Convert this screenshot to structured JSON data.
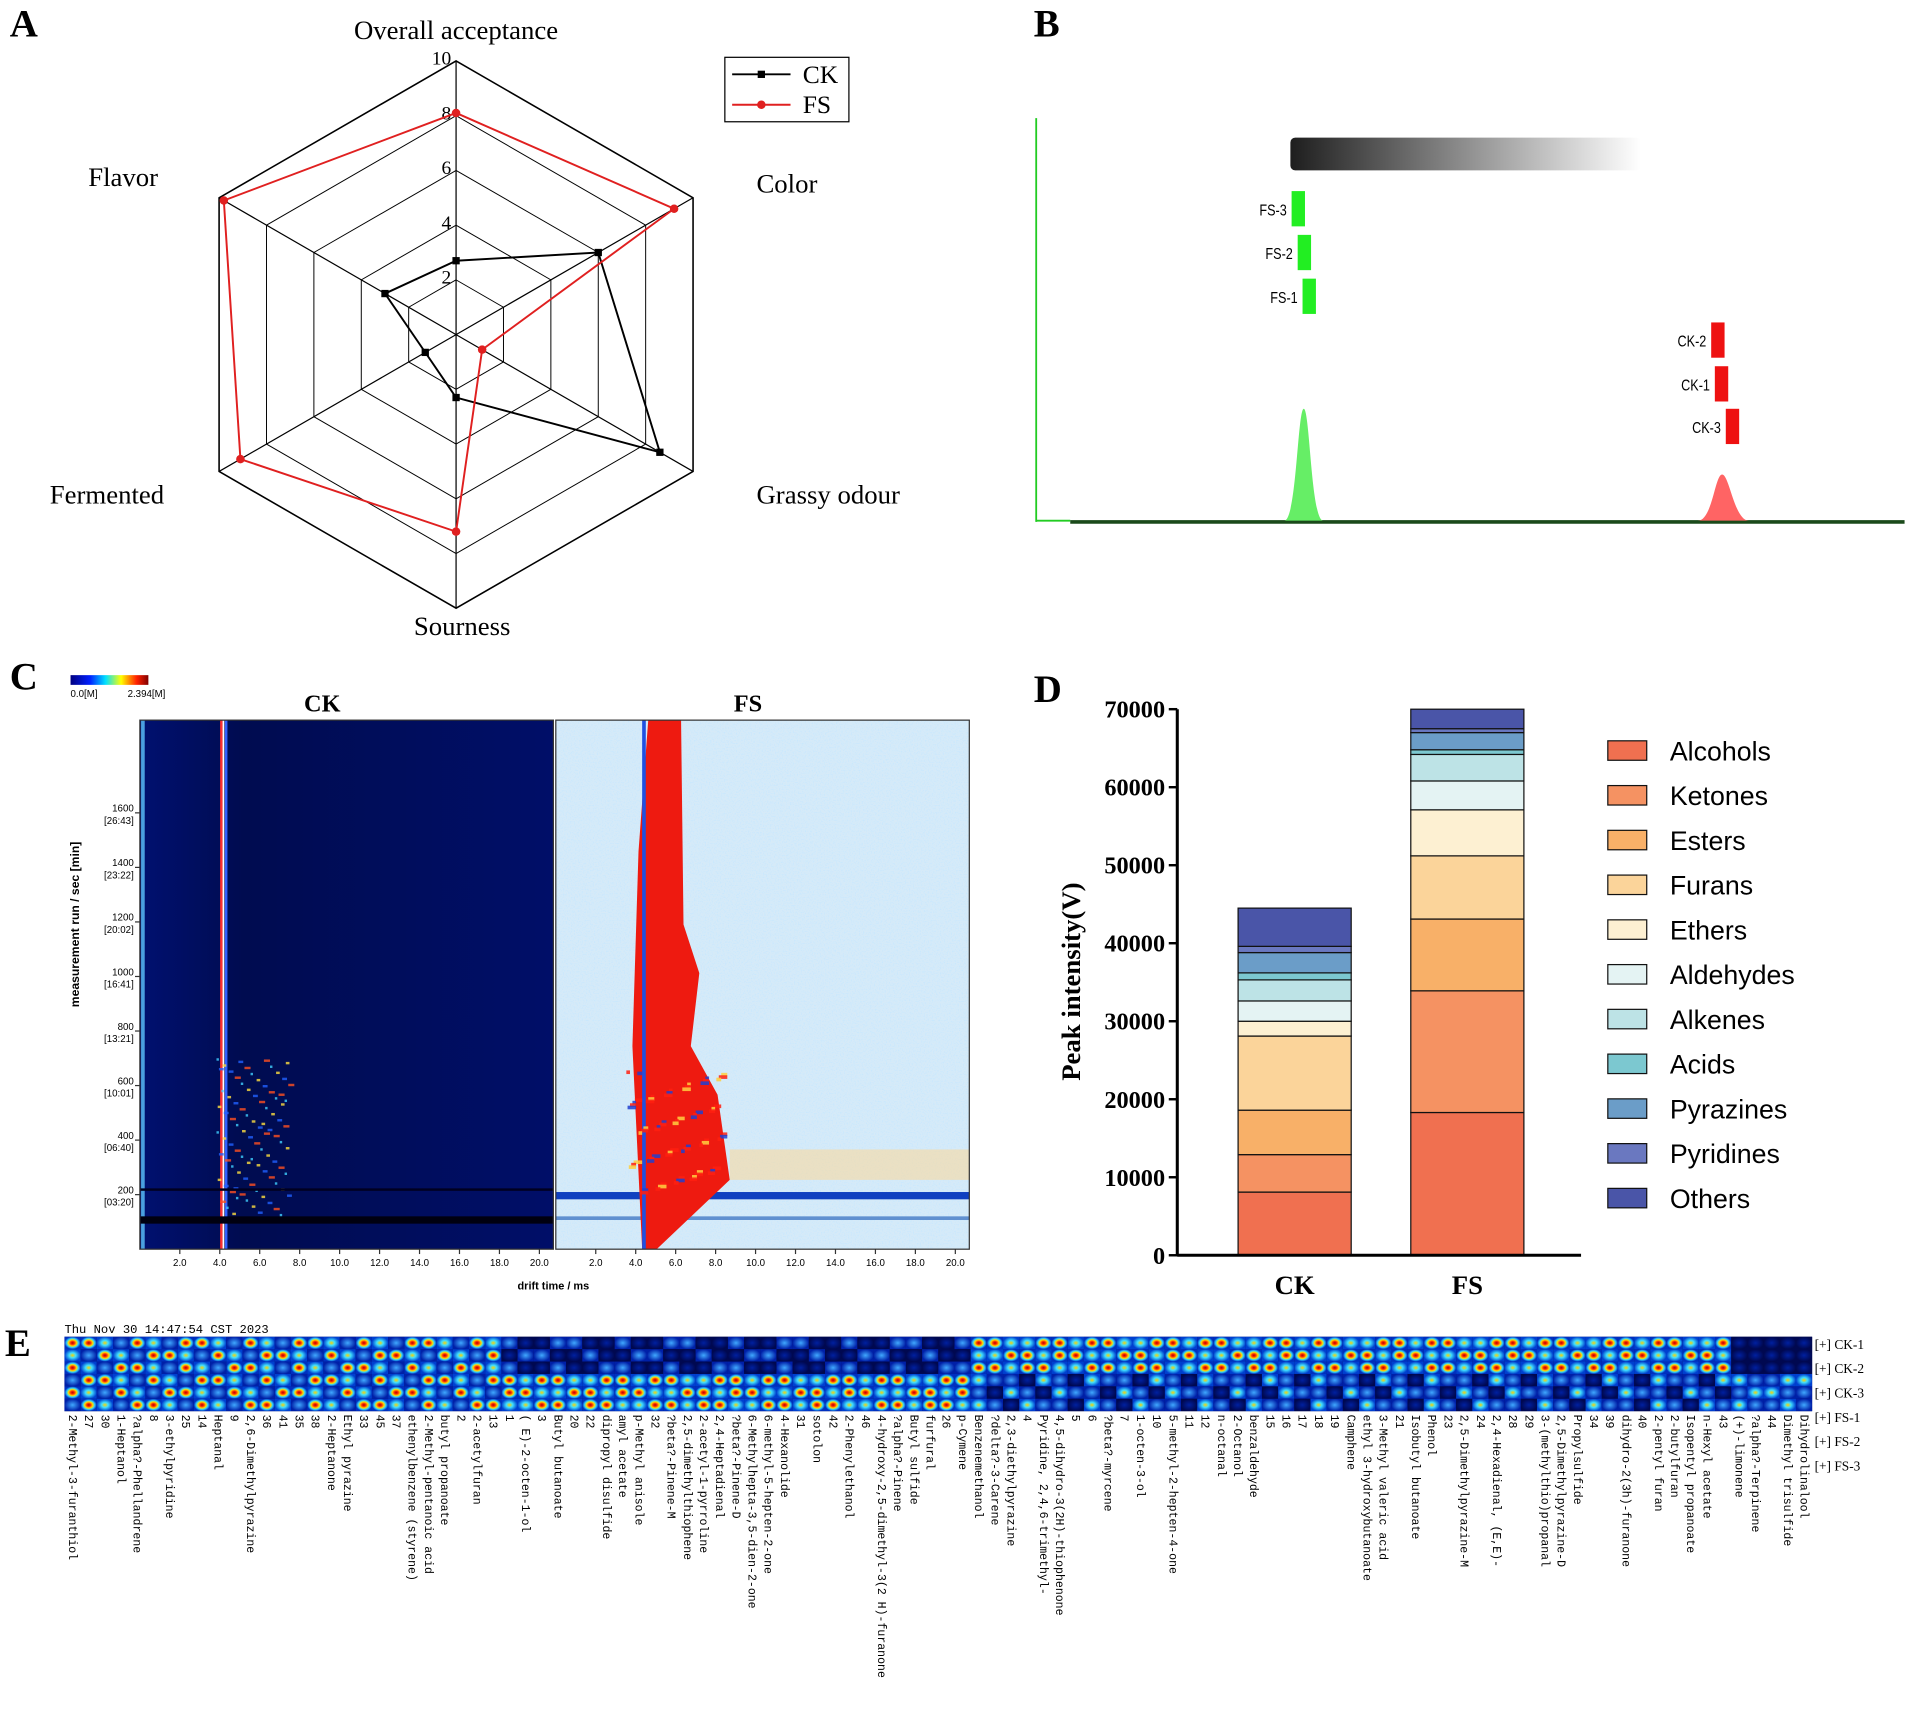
{
  "chart_data": [
    {
      "panel": "A",
      "type": "radar",
      "axes": [
        "Overall acceptance",
        "Color",
        "Grassy odour",
        "Sourness",
        "Fermented",
        "Flavor"
      ],
      "rlim": [
        0,
        10
      ],
      "rticks": [
        2,
        4,
        6,
        8,
        10
      ],
      "series": [
        {
          "name": "CK",
          "color": "#000000",
          "values": [
            2.7,
            6.0,
            8.6,
            2.3,
            1.3,
            3.0
          ]
        },
        {
          "name": "FS",
          "color": "#e02020",
          "values": [
            8.1,
            9.2,
            1.1,
            7.2,
            9.1,
            9.8
          ]
        }
      ]
    },
    {
      "panel": "B",
      "type": "gallery",
      "samples": [
        {
          "name": "FS-3",
          "color": "#22ee22"
        },
        {
          "name": "FS-2",
          "color": "#22ee22"
        },
        {
          "name": "FS-1",
          "color": "#22ee22"
        },
        {
          "name": "CK-2",
          "color": "#ee1111"
        },
        {
          "name": "CK-1",
          "color": "#ee1111"
        },
        {
          "name": "CK-3",
          "color": "#ee1111"
        }
      ]
    },
    {
      "panel": "C",
      "type": "heatmap",
      "titles": [
        "CK",
        "FS"
      ],
      "xlabel": "drift time / ms",
      "ylabel": "measurement run / sec [min]",
      "xlim": [
        0,
        20.7
      ],
      "xticks": [
        {
          "value": 2,
          "label": "2.0"
        },
        {
          "value": 4,
          "label": "4.0"
        },
        {
          "value": 6,
          "label": "6.0"
        },
        {
          "value": 8,
          "label": "8.0"
        },
        {
          "value": 10,
          "label": "10.0"
        },
        {
          "value": 12,
          "label": "12.0"
        },
        {
          "value": 14,
          "label": "14.0"
        },
        {
          "value": 16,
          "label": "16.0"
        },
        {
          "value": 18,
          "label": "18.0"
        },
        {
          "value": 20,
          "label": "20.0"
        }
      ],
      "ylim": [
        0,
        1940
      ],
      "yticks": [
        200,
        400,
        600,
        800,
        1000,
        1200,
        1400,
        1600
      ],
      "ytick_times": [
        "[03:20]",
        "[06:40]",
        "[10:01]",
        "[13:21]",
        "[16:41]",
        "[20:02]",
        "[23:22]",
        "[26:43]"
      ],
      "colorbar_labels": [
        "0.0[M]",
        "2.394[M]"
      ]
    },
    {
      "panel": "D",
      "type": "stacked_bar",
      "categories": [
        "CK",
        "FS"
      ],
      "ylabel": "Peak intensity(V)",
      "ylim": [
        0,
        70000
      ],
      "yticks": [
        0,
        10000,
        20000,
        30000,
        40000,
        50000,
        60000,
        70000
      ],
      "legend": "right",
      "series": [
        {
          "name": "Alcohols",
          "color": "#f07050",
          "values": [
            8100,
            18300
          ]
        },
        {
          "name": "Ketones",
          "color": "#f59262",
          "values": [
            4800,
            15600
          ]
        },
        {
          "name": "Esters",
          "color": "#f8b068",
          "values": [
            5700,
            9200
          ]
        },
        {
          "name": "Furans",
          "color": "#fbd49a",
          "values": [
            9500,
            8100
          ]
        },
        {
          "name": "Ethers",
          "color": "#fdf0d2",
          "values": [
            1900,
            5900
          ]
        },
        {
          "name": "Aldehydes",
          "color": "#e4f3f3",
          "values": [
            2600,
            3700
          ]
        },
        {
          "name": "Alkenes",
          "color": "#bde3e6",
          "values": [
            2700,
            3400
          ]
        },
        {
          "name": "Acids",
          "color": "#7cc8d0",
          "values": [
            900,
            600
          ]
        },
        {
          "name": "Pyrazines",
          "color": "#6b9dc8",
          "values": [
            2600,
            2200
          ]
        },
        {
          "name": "Pyridines",
          "color": "#6a78c0",
          "values": [
            800,
            500
          ]
        },
        {
          "name": "Others",
          "color": "#4a55a8",
          "values": [
            4900,
            2500
          ]
        }
      ]
    },
    {
      "panel": "E",
      "type": "fingerprint",
      "timestamp": "Thu Nov 30 14:47:54 CST 2023",
      "rows": [
        "[+] CK-1",
        "[+] CK-2",
        "[+] CK-3",
        "[+] FS-1",
        "[+] FS-2",
        "[+] FS-3"
      ],
      "columns": [
        "2-Methyl-3-furanthiol",
        "27",
        "30",
        "1-Heptanol",
        "?alpha?-Phellandrene",
        "8",
        "3-ethylpyridine",
        "25",
        "14",
        "Heptanal",
        "9",
        "2,6-Dimethylpyrazine",
        "36",
        "41",
        "35",
        "38",
        "2-Heptanone",
        "Ethyl pyrazine",
        "33",
        "45",
        "37",
        "ethenylbenzene (styrene)",
        "2-Methyl-pentanoic acid",
        "butyl propanoate",
        "2",
        "2-acetylfuran",
        "13",
        "1",
        "( E)-2-octen-1-ol",
        "3",
        "Butyl butanoate",
        "20",
        "22",
        "dipropyl disulfide",
        "amyl acetate",
        "p-Methyl anisole",
        "32",
        "?beta?-Pinene-M",
        "2,5-dimethylthiophene",
        "2-acetyl-1-pyrroline",
        "2,4-Heptadienal",
        "?beta?-Pinene-D",
        "6-Methylhepta-3,5-dien-2-one",
        "6-methyl-5-hepten-2-one",
        "4-Hexanolide",
        "31",
        "sotolon",
        "42",
        "2-Phenylethanol",
        "46",
        "4-hydroxy-2,5-dimethyl-3(2 H)-furanone",
        "?alpha?-Pinene",
        "Butyl sulfide",
        "furfural",
        "26",
        "p-Cymene",
        "Benzenemethanol",
        "?delta?-3-Carene",
        "2,3-diethylpyrazine",
        "4",
        "Pyridine, 2,4,6-trimethyl-",
        "4,5-dihydro-3(2H)-thiophenone",
        "5",
        "6",
        "?beta?-myrcene",
        "7",
        "1-octen-3-ol",
        "10",
        "5-methyl-2-hepten-4-one",
        "11",
        "12",
        "n-octanal",
        "2-Octanol",
        "benzaldehyde",
        "15",
        "16",
        "17",
        "18",
        "19",
        "Camphene",
        "ethyl 3-hydroxybutanoate",
        "3-Methyl valeric acid",
        "21",
        "Isobutyl butanoate",
        "Phenol",
        "23",
        "2,5-Dimethylpyrazine-M",
        "24",
        "2,4-Hexadienal, (E,E)-",
        "28",
        "29",
        "3-(methylthio)propanal",
        "2,5-Dimethylpyrazine-D",
        "Propylsulfide",
        "34",
        "39",
        "dihydro-2(3h)-furanone",
        "40",
        "2-pentyl furan",
        "2-butylfuran",
        "Isopentyl propanoate",
        "n-Hexyl acetate",
        "43",
        "(+)-limonene",
        "?alpha?-Terpinene",
        "44",
        "Dimethyl trisulfide",
        "Dihydrolinalool"
      ]
    }
  ]
}
